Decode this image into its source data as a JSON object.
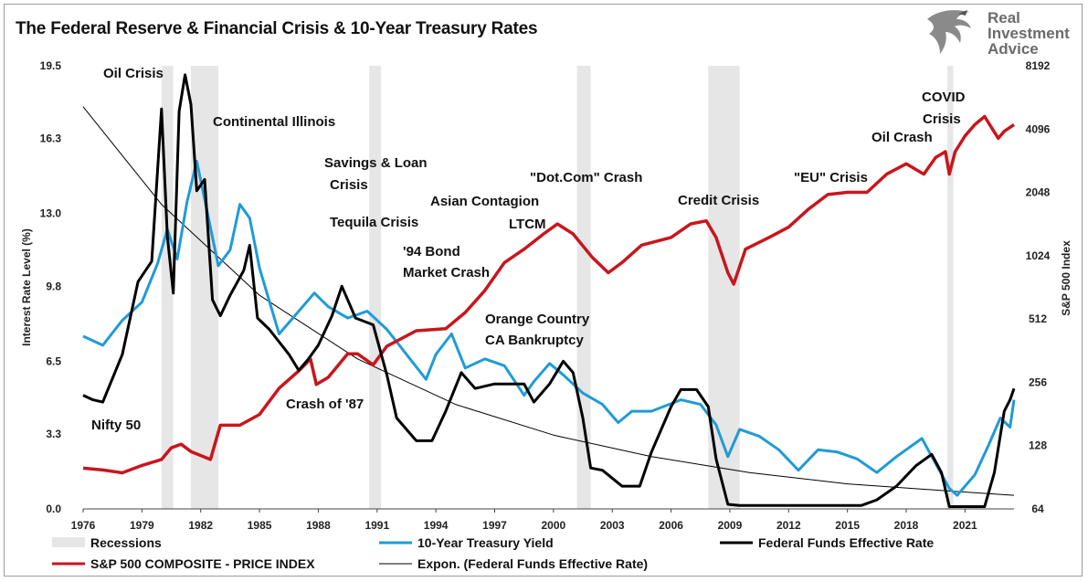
{
  "title": "The Federal Reserve & Financial Crisis & 10-Year Treasury Rates",
  "logo": {
    "line1": "Real",
    "line2": "Investment",
    "line3": "Advice",
    "icon": "eagle-icon"
  },
  "colors": {
    "sp500": "#c8161d",
    "treasury": "#1f9bd7",
    "fedfunds": "#000000",
    "expon": "#000000",
    "recession": "#e6e6e6"
  },
  "chart_data": {
    "type": "line",
    "ylabel": "Interest Rate Level (%)",
    "y2label": "S&P 500 Index",
    "ylim": [
      0,
      19.5
    ],
    "y2lim": [
      64,
      8192
    ],
    "y2scale": "log2",
    "xlim": [
      1976,
      2023.5
    ],
    "x_ticks": [
      "1976",
      "1979",
      "1982",
      "1985",
      "1988",
      "1991",
      "1994",
      "1997",
      "2000",
      "2003",
      "2006",
      "2009",
      "2012",
      "2015",
      "2018",
      "2021"
    ],
    "y_ticks": [
      "0.0",
      "3.3",
      "6.5",
      "9.8",
      "13.0",
      "16.3",
      "19.5"
    ],
    "y2_ticks": [
      "64",
      "128",
      "256",
      "512",
      "1024",
      "2048",
      "4096",
      "8192"
    ],
    "legend_position": "bottom",
    "recessions": [
      [
        1980.0,
        1980.6
      ],
      [
        1981.5,
        1982.9
      ],
      [
        1990.6,
        1991.2
      ],
      [
        2001.2,
        2001.9
      ],
      [
        2007.9,
        2009.5
      ],
      [
        2020.1,
        2020.4
      ]
    ],
    "series": [
      {
        "name": "Recessions",
        "kind": "band"
      },
      {
        "name": "10-Year Treasury Yield",
        "axis": "left",
        "x": [
          1976,
          1977,
          1978,
          1979,
          1979.8,
          1980.3,
          1980.8,
          1981.3,
          1981.8,
          1982.3,
          1982.9,
          1983.5,
          1984.0,
          1984.5,
          1985.0,
          1986.0,
          1986.8,
          1987.8,
          1988.5,
          1989.5,
          1990.5,
          1991.5,
          1992.5,
          1993.5,
          1994.0,
          1994.8,
          1995.5,
          1996.5,
          1997.5,
          1998.5,
          1999.0,
          1999.8,
          2000.5,
          2001.5,
          2002.5,
          2003.3,
          2004.0,
          2005.0,
          2006.5,
          2007.5,
          2008.3,
          2008.9,
          2009.5,
          2010.5,
          2011.5,
          2012.5,
          2013.5,
          2014.5,
          2015.5,
          2016.5,
          2017.5,
          2018.8,
          2019.5,
          2020.2,
          2020.6,
          2021.5,
          2022.2,
          2022.8,
          2023.3,
          2023.5
        ],
        "y": [
          7.6,
          7.2,
          8.3,
          9.1,
          10.8,
          12.3,
          11.0,
          13.5,
          15.3,
          13.2,
          10.7,
          11.4,
          13.4,
          12.8,
          10.6,
          7.7,
          8.5,
          9.5,
          8.9,
          8.4,
          8.7,
          7.9,
          6.8,
          5.7,
          6.8,
          7.7,
          6.2,
          6.6,
          6.3,
          5.0,
          5.6,
          6.4,
          5.9,
          5.1,
          4.6,
          3.8,
          4.3,
          4.3,
          4.8,
          4.6,
          3.7,
          2.3,
          3.5,
          3.2,
          2.6,
          1.7,
          2.6,
          2.5,
          2.2,
          1.6,
          2.3,
          3.1,
          2.0,
          0.9,
          0.6,
          1.5,
          2.8,
          4.0,
          3.6,
          4.8
        ]
      },
      {
        "name": "Federal Funds Effective Rate",
        "axis": "left",
        "x": [
          1976,
          1976.5,
          1977,
          1978,
          1978.8,
          1979.5,
          1980.0,
          1980.3,
          1980.6,
          1980.9,
          1981.2,
          1981.5,
          1981.8,
          1982.2,
          1982.6,
          1983.0,
          1983.5,
          1984.2,
          1984.5,
          1984.9,
          1985.5,
          1986.5,
          1987.0,
          1987.5,
          1988.0,
          1988.7,
          1989.2,
          1989.9,
          1990.8,
          1991.5,
          1992.0,
          1993.0,
          1993.8,
          1994.5,
          1995.3,
          1996.0,
          1997.0,
          1998.5,
          1999.0,
          1999.8,
          2000.5,
          2001.0,
          2001.5,
          2001.9,
          2002.5,
          2003.5,
          2004.4,
          2005.0,
          2006.0,
          2006.5,
          2007.3,
          2007.9,
          2008.3,
          2008.9,
          2009.5,
          2015.7,
          2016.5,
          2017.5,
          2018.5,
          2019.3,
          2019.8,
          2020.2,
          2020.5,
          2022.0,
          2022.5,
          2023.0,
          2023.3,
          2023.5
        ],
        "y": [
          5.0,
          4.8,
          4.7,
          6.8,
          10.0,
          10.9,
          17.6,
          12.0,
          9.5,
          17.5,
          19.1,
          17.8,
          14.0,
          14.5,
          9.2,
          8.5,
          9.4,
          10.5,
          11.6,
          8.4,
          7.9,
          6.8,
          6.1,
          6.6,
          7.2,
          8.5,
          9.8,
          8.4,
          8.1,
          5.9,
          4.0,
          3.0,
          3.0,
          4.3,
          6.0,
          5.3,
          5.5,
          5.5,
          4.7,
          5.5,
          6.5,
          6.0,
          4.0,
          1.8,
          1.7,
          1.0,
          1.0,
          2.5,
          4.5,
          5.25,
          5.25,
          4.5,
          2.2,
          0.2,
          0.15,
          0.15,
          0.4,
          1.0,
          1.9,
          2.4,
          1.6,
          0.1,
          0.1,
          0.1,
          1.6,
          4.3,
          4.8,
          5.3
        ]
      },
      {
        "name": "S&P 500 COMPOSITE - PRICE INDEX",
        "axis": "right",
        "x": [
          1976,
          1977,
          1978,
          1979,
          1980,
          1980.5,
          1981,
          1981.5,
          1982.5,
          1983,
          1984,
          1985,
          1986,
          1987.0,
          1987.6,
          1987.9,
          1988.5,
          1989.5,
          1990.0,
          1990.8,
          1991.5,
          1993.0,
          1994.5,
          1995.5,
          1996.5,
          1997.5,
          1998.5,
          1999.5,
          2000.2,
          2001.0,
          2002.0,
          2002.8,
          2003.5,
          2004.5,
          2006.0,
          2007.0,
          2007.8,
          2008.3,
          2008.9,
          2009.2,
          2009.8,
          2011.0,
          2012.0,
          2013.0,
          2014.0,
          2015.0,
          2016.0,
          2017.0,
          2018.0,
          2018.9,
          2019.5,
          2020.0,
          2020.2,
          2020.5,
          2021.0,
          2021.5,
          2022.0,
          2022.7,
          2023.0,
          2023.5
        ],
        "y": [
          100,
          98,
          95,
          103,
          110,
          125,
          130,
          120,
          110,
          160,
          160,
          180,
          240,
          290,
          330,
          250,
          270,
          350,
          350,
          310,
          380,
          450,
          460,
          550,
          700,
          950,
          1100,
          1300,
          1450,
          1300,
          1000,
          850,
          950,
          1150,
          1250,
          1450,
          1500,
          1250,
          850,
          750,
          1100,
          1250,
          1400,
          1700,
          2000,
          2050,
          2050,
          2500,
          2800,
          2500,
          3000,
          3200,
          2500,
          3200,
          3800,
          4300,
          4700,
          3700,
          4000,
          4300
        ]
      },
      {
        "name": "Expon. (Federal Funds Effective Rate)",
        "axis": "left",
        "kind": "trend",
        "x": [
          1976,
          1980,
          1985,
          1990,
          1995,
          2000,
          2005,
          2010,
          2015,
          2020,
          2023.5
        ],
        "y": [
          17.7,
          13.4,
          9.4,
          6.6,
          4.6,
          3.25,
          2.3,
          1.6,
          1.1,
          0.8,
          0.6
        ]
      }
    ],
    "annotations": [
      {
        "text": "Oil Crisis"
      },
      {
        "text": "Continental Illinois"
      },
      {
        "text": "Savings & Loan"
      },
      {
        "text": "Crisis"
      },
      {
        "text": "Tequila Crisis"
      },
      {
        "text": "Asian Contagion"
      },
      {
        "text": "LTCM"
      },
      {
        "text": "\"Dot.Com\" Crash"
      },
      {
        "text": "'94 Bond"
      },
      {
        "text": "Market Crash"
      },
      {
        "text": "Orange Country"
      },
      {
        "text": "CA Bankruptcy"
      },
      {
        "text": "Credit Crisis"
      },
      {
        "text": "\"EU\" Crisis"
      },
      {
        "text": "Oil Crash"
      },
      {
        "text": "COVID"
      },
      {
        "text": "Crisis"
      },
      {
        "text": "Nifty 50"
      },
      {
        "text": "Crash of '87"
      }
    ]
  }
}
